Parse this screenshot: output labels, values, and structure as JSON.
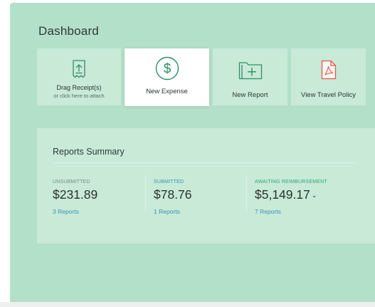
{
  "page": {
    "title": "Dashboard"
  },
  "actions": [
    {
      "label": "Drag Receipt(s)",
      "sublabel": "or click here to attach",
      "icon": "receipt-upload-icon"
    },
    {
      "label": "New Expense",
      "icon": "dollar-circle-icon"
    },
    {
      "label": "New Report",
      "icon": "folder-plus-icon"
    },
    {
      "label": "View Travel Policy",
      "icon": "pdf-document-icon"
    }
  ],
  "summary": {
    "title": "Reports Summary",
    "stats": [
      {
        "label": "UNSUBMITTED",
        "value": "$231.89",
        "link": "3 Reports"
      },
      {
        "label": "SUBMITTED",
        "value": "$78.76",
        "link": "1 Reports"
      },
      {
        "label": "AWAITING REIMBURSEMENT",
        "value": "$5,149.17",
        "link": "7 Reports"
      }
    ]
  },
  "colors": {
    "panel_background": "#b3e0c8",
    "tile_background": "#c8ead7",
    "link": "#3b8fb8",
    "awaiting_label": "#2aa876",
    "icon_green": "#2f8f66",
    "pdf_icon": "#e2574c"
  }
}
